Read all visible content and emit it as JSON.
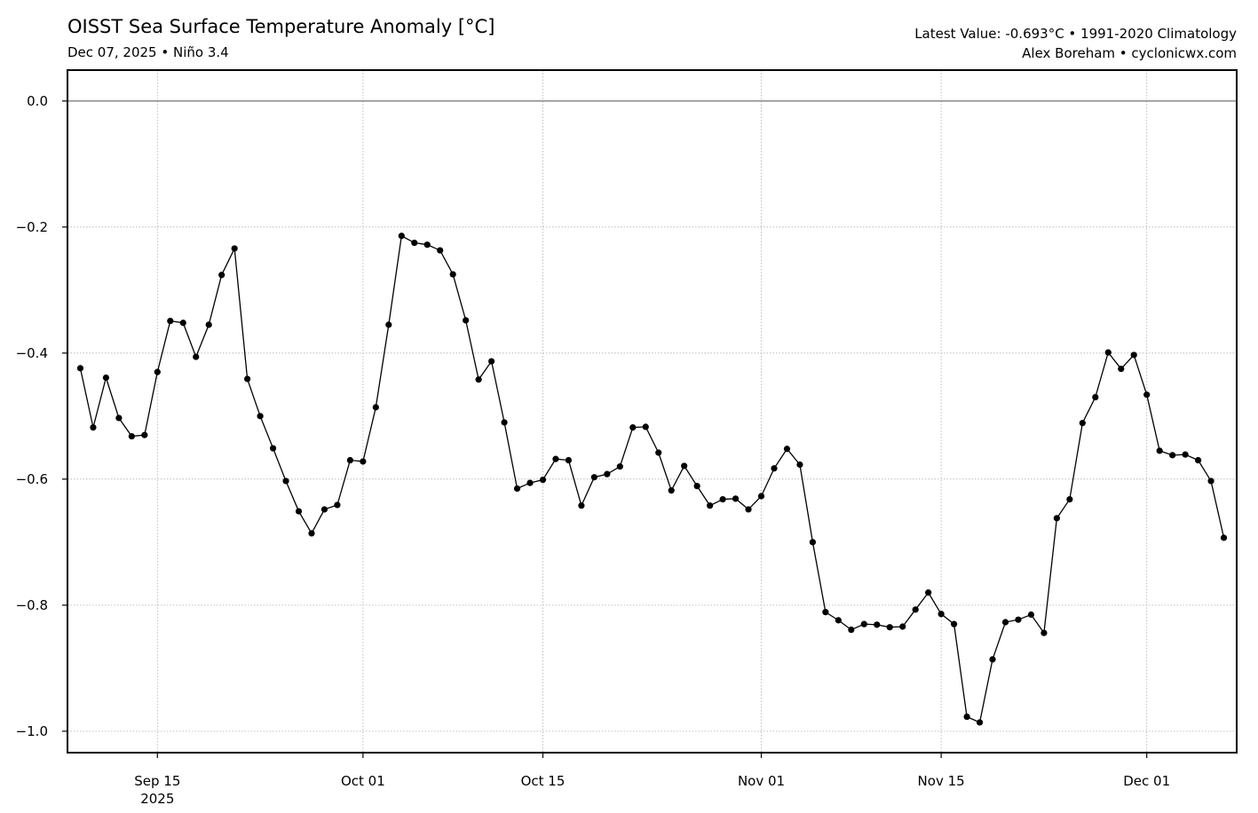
{
  "header": {
    "title": "OISST Sea Surface Temperature Anomaly [°C]",
    "subtitle": "Dec 07, 2025 • Niño 3.4",
    "latest_value": "Latest Value: -0.693°C • 1991-2020 Climatology",
    "credit": "Alex Boreham • cyclonicwx.com"
  },
  "chart_data": {
    "type": "line",
    "title": "OISST Sea Surface Temperature Anomaly [°C]",
    "subtitle": "Dec 07, 2025 • Niño 3.4",
    "xlabel": "",
    "ylabel": "",
    "xlim": [
      "2025-09-08",
      "2025-12-08"
    ],
    "ylim": [
      -1.034,
      0.049
    ],
    "grid": true,
    "grid_style": "dotted",
    "reference_line": 0.0,
    "line_color": "#000000",
    "marker": "circle",
    "xticks": [
      {
        "date": "2025-09-15",
        "label": "Sep 15",
        "sublabel": "2025"
      },
      {
        "date": "2025-10-01",
        "label": "Oct 01"
      },
      {
        "date": "2025-10-15",
        "label": "Oct 15"
      },
      {
        "date": "2025-11-01",
        "label": "Nov 01"
      },
      {
        "date": "2025-11-15",
        "label": "Nov 15"
      },
      {
        "date": "2025-12-01",
        "label": "Dec 01"
      }
    ],
    "yticks": [
      0.0,
      -0.2,
      -0.4,
      -0.6,
      -0.8,
      -1.0
    ],
    "ytick_labels": [
      "0.0",
      "−0.2",
      "−0.4",
      "−0.6",
      "−0.8",
      "−1.0"
    ],
    "x": [
      "2025-09-09",
      "2025-09-10",
      "2025-09-11",
      "2025-09-12",
      "2025-09-13",
      "2025-09-14",
      "2025-09-15",
      "2025-09-16",
      "2025-09-17",
      "2025-09-18",
      "2025-09-19",
      "2025-09-20",
      "2025-09-21",
      "2025-09-22",
      "2025-09-23",
      "2025-09-24",
      "2025-09-25",
      "2025-09-26",
      "2025-09-27",
      "2025-09-28",
      "2025-09-29",
      "2025-09-30",
      "2025-10-01",
      "2025-10-02",
      "2025-10-03",
      "2025-10-04",
      "2025-10-05",
      "2025-10-06",
      "2025-10-07",
      "2025-10-08",
      "2025-10-09",
      "2025-10-10",
      "2025-10-11",
      "2025-10-12",
      "2025-10-13",
      "2025-10-14",
      "2025-10-15",
      "2025-10-16",
      "2025-10-17",
      "2025-10-18",
      "2025-10-19",
      "2025-10-20",
      "2025-10-21",
      "2025-10-22",
      "2025-10-23",
      "2025-10-24",
      "2025-10-25",
      "2025-10-26",
      "2025-10-27",
      "2025-10-28",
      "2025-10-29",
      "2025-10-30",
      "2025-10-31",
      "2025-11-01",
      "2025-11-02",
      "2025-11-03",
      "2025-11-04",
      "2025-11-05",
      "2025-11-06",
      "2025-11-07",
      "2025-11-08",
      "2025-11-09",
      "2025-11-10",
      "2025-11-11",
      "2025-11-12",
      "2025-11-13",
      "2025-11-14",
      "2025-11-15",
      "2025-11-16",
      "2025-11-17",
      "2025-11-18",
      "2025-11-19",
      "2025-11-20",
      "2025-11-21",
      "2025-11-22",
      "2025-11-23",
      "2025-11-24",
      "2025-11-25",
      "2025-11-26",
      "2025-11-27",
      "2025-11-28",
      "2025-11-29",
      "2025-11-30",
      "2025-12-01",
      "2025-12-02",
      "2025-12-03",
      "2025-12-04",
      "2025-12-05",
      "2025-12-06",
      "2025-12-07"
    ],
    "y": [
      -0.424,
      -0.518,
      -0.439,
      -0.503,
      -0.532,
      -0.53,
      -0.43,
      -0.349,
      -0.352,
      -0.406,
      -0.355,
      -0.276,
      -0.234,
      -0.441,
      -0.5,
      -0.551,
      -0.603,
      -0.651,
      -0.686,
      -0.648,
      -0.641,
      -0.57,
      -0.572,
      -0.486,
      -0.355,
      -0.214,
      -0.225,
      -0.228,
      -0.237,
      -0.275,
      -0.348,
      -0.442,
      -0.413,
      -0.51,
      -0.615,
      -0.606,
      -0.601,
      -0.568,
      -0.57,
      -0.642,
      -0.597,
      -0.592,
      -0.58,
      -0.518,
      -0.517,
      -0.558,
      -0.618,
      -0.579,
      -0.611,
      -0.642,
      -0.632,
      -0.631,
      -0.648,
      -0.627,
      -0.583,
      -0.552,
      -0.577,
      -0.7,
      -0.811,
      -0.824,
      -0.839,
      -0.83,
      -0.831,
      -0.835,
      -0.834,
      -0.807,
      -0.78,
      -0.814,
      -0.83,
      -0.977,
      -0.986,
      -0.886,
      -0.827,
      -0.823,
      -0.815,
      -0.844,
      -0.662,
      -0.632,
      -0.511,
      -0.47,
      -0.399,
      -0.425,
      -0.403,
      -0.466,
      -0.555,
      -0.562,
      -0.561,
      -0.57,
      -0.603,
      -0.693
    ]
  }
}
